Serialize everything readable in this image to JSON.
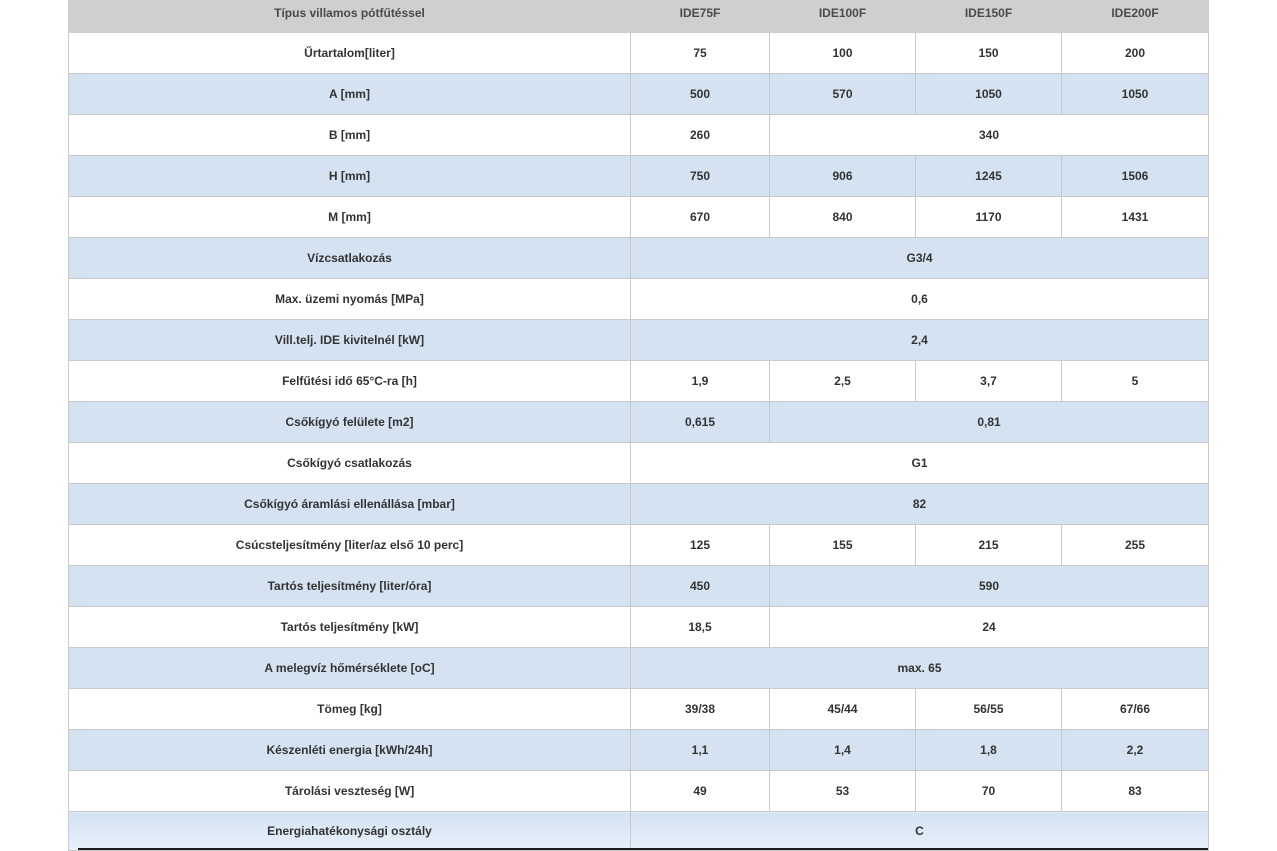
{
  "header": [
    "Típus  villamos pótfűtéssel",
    "IDE75F",
    "IDE100F",
    "IDE150F",
    "IDE200F"
  ],
  "rows": [
    {
      "label": "Űrtartalom[liter]",
      "cells": [
        {
          "v": "75",
          "span": 1
        },
        {
          "v": "100",
          "span": 1
        },
        {
          "v": "150",
          "span": 1
        },
        {
          "v": "200",
          "span": 1
        }
      ]
    },
    {
      "label": "A [mm]",
      "cells": [
        {
          "v": "500",
          "span": 1
        },
        {
          "v": "570",
          "span": 1
        },
        {
          "v": "1050",
          "span": 1
        },
        {
          "v": "1050",
          "span": 1
        }
      ]
    },
    {
      "label": "B [mm]",
      "cells": [
        {
          "v": "260",
          "span": 1
        },
        {
          "v": "340",
          "span": 3
        }
      ]
    },
    {
      "label": "H [mm]",
      "cells": [
        {
          "v": "750",
          "span": 1
        },
        {
          "v": "906",
          "span": 1
        },
        {
          "v": "1245",
          "span": 1
        },
        {
          "v": "1506",
          "span": 1
        }
      ]
    },
    {
      "label": "M [mm]",
      "cells": [
        {
          "v": "670",
          "span": 1
        },
        {
          "v": "840",
          "span": 1
        },
        {
          "v": "1170",
          "span": 1
        },
        {
          "v": "1431",
          "span": 1
        }
      ]
    },
    {
      "label": "Vízcsatlakozás",
      "cells": [
        {
          "v": "G3/4",
          "span": 4
        }
      ]
    },
    {
      "label": "Max. üzemi nyomás [MPa]",
      "cells": [
        {
          "v": "0,6",
          "span": 4
        }
      ]
    },
    {
      "label": "Vill.telj. IDE kivitelnél [kW]",
      "cells": [
        {
          "v": "2,4",
          "span": 4
        }
      ]
    },
    {
      "label": "Felfűtési idő 65°C-ra [h]",
      "cells": [
        {
          "v": "1,9",
          "span": 1
        },
        {
          "v": "2,5",
          "span": 1
        },
        {
          "v": "3,7",
          "span": 1
        },
        {
          "v": "5",
          "span": 1
        }
      ]
    },
    {
      "label": "Csőkígyó felülete [m2]",
      "cells": [
        {
          "v": "0,615",
          "span": 1
        },
        {
          "v": "0,81",
          "span": 3
        }
      ]
    },
    {
      "label": "Csőkígyó csatlakozás",
      "cells": [
        {
          "v": "G1",
          "span": 4
        }
      ]
    },
    {
      "label": "Csőkígyó áramlási ellenállása [mbar]",
      "cells": [
        {
          "v": "82",
          "span": 4
        }
      ]
    },
    {
      "label": "Csúcsteljesítmény [liter/az első 10 perc]",
      "cells": [
        {
          "v": "125",
          "span": 1
        },
        {
          "v": "155",
          "span": 1
        },
        {
          "v": "215",
          "span": 1
        },
        {
          "v": "255",
          "span": 1
        }
      ]
    },
    {
      "label": "Tartós teljesítmény [liter/óra]",
      "cells": [
        {
          "v": "450",
          "span": 1
        },
        {
          "v": "590",
          "span": 3
        }
      ]
    },
    {
      "label": "Tartós teljesítmény [kW]",
      "cells": [
        {
          "v": "18,5",
          "span": 1
        },
        {
          "v": "24",
          "span": 3
        }
      ]
    },
    {
      "label": "A melegvíz hőmérséklete [oC]",
      "cells": [
        {
          "v": "max. 65",
          "span": 4
        }
      ]
    },
    {
      "label": "Tömeg [kg]",
      "cells": [
        {
          "v": "39/38",
          "span": 1
        },
        {
          "v": "45/44",
          "span": 1
        },
        {
          "v": "56/55",
          "span": 1
        },
        {
          "v": "67/66",
          "span": 1
        }
      ]
    },
    {
      "label": "Készenléti energia [kWh/24h]",
      "cells": [
        {
          "v": "1,1",
          "span": 1
        },
        {
          "v": "1,4",
          "span": 1
        },
        {
          "v": "1,8",
          "span": 1
        },
        {
          "v": "2,2",
          "span": 1
        }
      ]
    },
    {
      "label": "Tárolási veszteség [W]",
      "cells": [
        {
          "v": "49",
          "span": 1
        },
        {
          "v": "53",
          "span": 1
        },
        {
          "v": "70",
          "span": 1
        },
        {
          "v": "83",
          "span": 1
        }
      ]
    },
    {
      "label": "Energiahatékonysági osztály",
      "cells": [
        {
          "v": "C",
          "span": 4
        }
      ]
    }
  ]
}
